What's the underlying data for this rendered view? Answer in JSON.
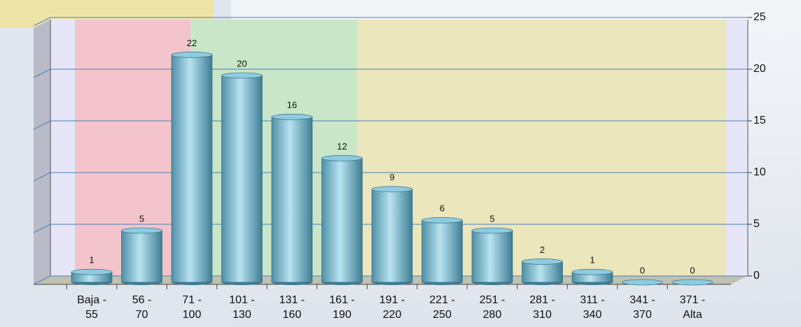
{
  "chart_data": {
    "type": "bar",
    "categories": [
      [
        "Baja -",
        "55"
      ],
      [
        "56 -",
        "70"
      ],
      [
        "71 -",
        "100"
      ],
      [
        "101 -",
        "130"
      ],
      [
        "131 -",
        "160"
      ],
      [
        "161 -",
        "190"
      ],
      [
        "191 -",
        "220"
      ],
      [
        "221 -",
        "250"
      ],
      [
        "251 -",
        "280"
      ],
      [
        "281 -",
        "310"
      ],
      [
        "311 -",
        "340"
      ],
      [
        "341 -",
        "370"
      ],
      [
        "371 -",
        "Alta"
      ]
    ],
    "values": [
      1,
      5,
      22,
      20,
      16,
      12,
      9,
      6,
      5,
      2,
      1,
      0,
      0
    ],
    "color": "#8ecbe0",
    "ylim": [
      0,
      25
    ],
    "yticks": [
      0,
      5,
      10,
      15,
      20,
      25
    ],
    "grid": true
  }
}
